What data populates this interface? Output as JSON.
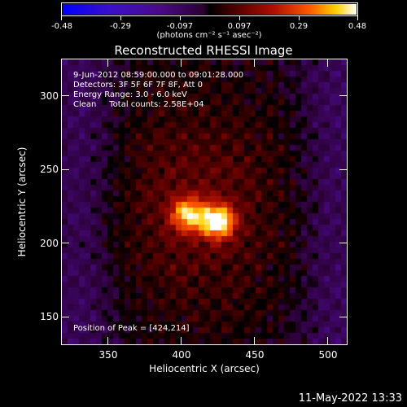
{
  "colorbar": {
    "ticks": [
      "-0.48",
      "-0.29",
      "-0.097",
      "0.097",
      "0.29",
      "0.48"
    ],
    "units_label": "(photons cm⁻² s⁻¹ asec⁻²)",
    "range": [
      -0.48,
      0.48
    ]
  },
  "title": "Reconstructed RHESSI Image",
  "annotations": {
    "time_range": "9-Jun-2012 08:59:00.000 to 09:01:28.000",
    "detectors": "Detectors: 3F 5F 6F 7F 8F, Att 0",
    "energy_range": "Energy Range: 3.0 - 6.0 keV",
    "clean_counts": "Clean     Total counts: 2.58E+04",
    "peak_position": "Position of Peak = [424,214]"
  },
  "x_axis": {
    "title": "Heliocentric X (arcsec)",
    "ticks": [
      "350",
      "400",
      "450",
      "500"
    ],
    "range": [
      318,
      512
    ]
  },
  "y_axis": {
    "title": "Heliocentric Y (arcsec)",
    "ticks": [
      "150",
      "200",
      "250",
      "300"
    ],
    "range": [
      130,
      325
    ]
  },
  "chart_data": {
    "type": "heatmap",
    "title": "Reconstructed RHESSI Image",
    "xlabel": "Heliocentric X (arcsec)",
    "ylabel": "Heliocentric Y (arcsec)",
    "xlim": [
      318,
      512
    ],
    "ylim": [
      130,
      325
    ],
    "zlim": [
      -0.48,
      0.48
    ],
    "peak": [
      424,
      214
    ],
    "sources": [
      {
        "x": 424,
        "y": 214,
        "amplitude": 0.48
      },
      {
        "x": 404,
        "y": 219,
        "amplitude": 0.36
      }
    ]
  },
  "footer": {
    "timestamp": "11-May-2022 13:33"
  },
  "colors": {
    "background": "#000000",
    "foreground": "#ffffff"
  }
}
